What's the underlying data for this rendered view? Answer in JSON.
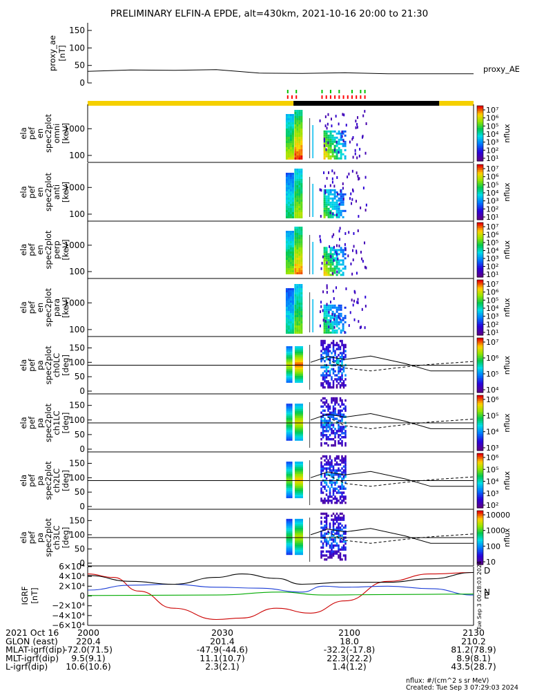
{
  "title": "PRELIMINARY ELFIN-A EPDE, alt=430km, 2021-10-16 20:00 to 21:30",
  "proxy_panel": {
    "ylabel_1": "proxy_ae",
    "ylabel_2": "[nT]",
    "yticks": [
      "150",
      "100",
      "50",
      "0"
    ],
    "ylim": [
      0,
      160
    ],
    "legend": "proxy_AE",
    "series": {
      "x": [
        0,
        10,
        20,
        30,
        40,
        50,
        60,
        70,
        80,
        90
      ],
      "y": [
        33,
        37,
        36,
        38,
        28,
        27,
        29,
        26,
        26,
        26
      ]
    }
  },
  "spectral_panels": [
    {
      "ylabel": [
        "ela",
        "pef",
        "en",
        "spec2plot",
        "omni",
        "[keV]"
      ],
      "yticks": [
        "1000",
        "100"
      ],
      "cbar_ticks": [
        "10⁷",
        "10⁶",
        "10⁵",
        "10⁴",
        "10³",
        "10²",
        "10¹"
      ],
      "cbar_label": "nflux"
    },
    {
      "ylabel": [
        "ela",
        "pef",
        "en",
        "spec2plot",
        "anti",
        "[keV]"
      ],
      "yticks": [
        "1000",
        "100"
      ],
      "cbar_ticks": [
        "10⁷",
        "10⁶",
        "10⁵",
        "10⁴",
        "10³",
        "10²",
        "10¹"
      ],
      "cbar_label": "nflux"
    },
    {
      "ylabel": [
        "ela",
        "pef",
        "en",
        "spec2plot",
        "perp",
        "[keV]"
      ],
      "yticks": [
        "1000",
        "100"
      ],
      "cbar_ticks": [
        "10⁷",
        "10⁶",
        "10⁵",
        "10⁴",
        "10³",
        "10²",
        "10¹"
      ],
      "cbar_label": "nflux"
    },
    {
      "ylabel": [
        "ela",
        "pef",
        "en",
        "spec2plot",
        "para",
        "[keV]"
      ],
      "yticks": [
        "1000",
        "100"
      ],
      "cbar_ticks": [
        "10⁷",
        "10⁶",
        "10⁵",
        "10⁴",
        "10³",
        "10²",
        "10¹"
      ],
      "cbar_label": "nflux"
    }
  ],
  "pitch_panels": [
    {
      "ylabel": [
        "ela",
        "pef",
        "pa",
        "spec2plot",
        "ch0LC",
        "[deg]"
      ],
      "yticks": [
        "150",
        "100",
        "50",
        "0"
      ],
      "cbar_ticks": [
        "10⁷",
        "10⁶",
        "10⁵",
        "10⁴"
      ],
      "cbar_label": "nflux"
    },
    {
      "ylabel": [
        "ela",
        "pef",
        "pa",
        "spec2plot",
        "ch1LC",
        "[deg]"
      ],
      "yticks": [
        "150",
        "100",
        "50",
        "0"
      ],
      "cbar_ticks": [
        "10⁶",
        "10⁵",
        "10⁴",
        "10³"
      ],
      "cbar_label": "nflux"
    },
    {
      "ylabel": [
        "ela",
        "pef",
        "pa",
        "spec2plot",
        "ch2LC",
        "[deg]"
      ],
      "yticks": [
        "150",
        "100",
        "50",
        "0"
      ],
      "cbar_ticks": [
        "10⁶",
        "10⁵",
        "10⁴",
        "10³",
        "10²"
      ],
      "cbar_label": "nflux"
    },
    {
      "ylabel": [
        "ela",
        "pef",
        "pa",
        "spec2plot",
        "ch3LC",
        "[deg]"
      ],
      "yticks": [
        "150",
        "100",
        "50",
        "0"
      ],
      "cbar_ticks": [
        "10000",
        "1000",
        "100",
        "10"
      ],
      "cbar_label": "nflux"
    }
  ],
  "igrf_panel": {
    "ylabel_1": "IGRF",
    "ylabel_2": "[nT]",
    "yticks": [
      "6×10⁴",
      "4×10⁴",
      "2×10⁴",
      "0",
      "−2×10⁴",
      "−4×10⁴",
      "−6×10⁴"
    ],
    "legend": [
      {
        "name": "D",
        "color": "#cc0000"
      },
      {
        "name": "N",
        "color": "#1a3cd6"
      },
      {
        "name": "E",
        "color": "#00aa00"
      }
    ],
    "side_note": "Tue Sep  3 00:28:03 2024"
  },
  "chart_data": {
    "type": "heatmap",
    "title": "PRELIMINARY ELFIN-A EPDE, alt=430km, 2021-10-16 20:00 to 21:30",
    "x_range_minutes": [
      0,
      90
    ],
    "x_tick_labels": [
      "2000",
      "2030",
      "2100",
      "2130"
    ],
    "energy_range_keV": [
      60,
      7000
    ],
    "pitch_range_deg": [
      0,
      180
    ],
    "igrf_ylim": [
      -60000,
      60000
    ],
    "igrf_series": [
      {
        "color": "#cc0000",
        "t": [
          0,
          6,
          12,
          20,
          30,
          36,
          44,
          52,
          60,
          70,
          80,
          90
        ],
        "values": [
          45000,
          38000,
          10000,
          -25000,
          -48000,
          -45000,
          -25000,
          -35000,
          -10000,
          30000,
          45000,
          48000
        ]
      },
      {
        "color": "#1a3cd6",
        "t": [
          0,
          10,
          20,
          30,
          40,
          50,
          55,
          60,
          70,
          80,
          90
        ],
        "values": [
          12000,
          22000,
          24000,
          18000,
          16000,
          8000,
          20000,
          18000,
          20000,
          15000,
          2000
        ]
      },
      {
        "color": "#000000",
        "t": [
          0,
          10,
          20,
          30,
          36,
          44,
          50,
          60,
          70,
          80,
          90
        ],
        "values": [
          42000,
          30000,
          24000,
          38000,
          45000,
          36000,
          24000,
          28000,
          28000,
          35000,
          48000
        ]
      },
      {
        "color": "#00aa00",
        "t": [
          0,
          30,
          45,
          55,
          70,
          90
        ],
        "values": [
          1000,
          2000,
          8000,
          2000,
          3000,
          4000
        ]
      }
    ]
  },
  "footer": {
    "rows": [
      [
        "2021 Oct 16",
        "2000",
        "2030",
        "2100",
        "2130"
      ],
      [
        "GLON (east)",
        "220.4",
        "201.4",
        "18.0",
        "210.2"
      ],
      [
        "MLAT-igrf(dip)",
        "-72.0(71.5)",
        "-47.9(-44.6)",
        "-32.2(-17.8)",
        "81.2(78.9)"
      ],
      [
        "MLT-igrf(dip)",
        "9.5(9.1)",
        "11.1(10.7)",
        "22.3(22.2)",
        "8.9(8.1)"
      ],
      [
        "L-igrf(dip)",
        "10.6(10.6)",
        "2.3(2.1)",
        "1.4(1.2)",
        "43.5(28.7)"
      ]
    ],
    "note_1": "nflux: #/(cm^2 s sr MeV)",
    "note_2": "Created: Tue Sep  3 07:29:03 2024"
  },
  "colors": {
    "bar_yellow": "#f5d000",
    "bar_black": "#000000",
    "marker_green": "#00c000",
    "marker_red": "#ff0000"
  }
}
